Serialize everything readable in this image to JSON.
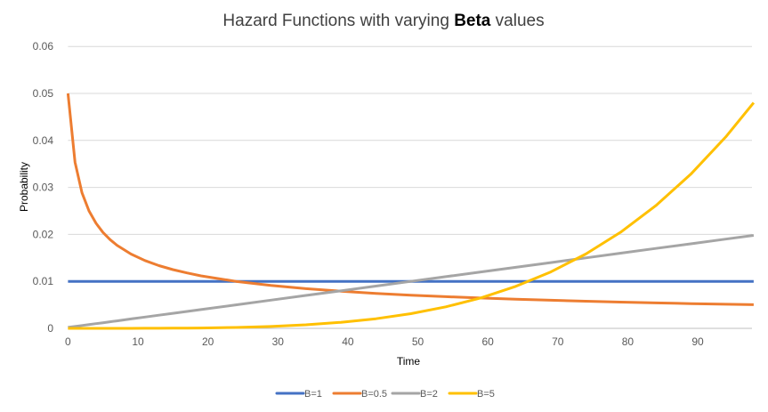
{
  "chart_data": {
    "type": "line",
    "title": "Hazard Functions with varying",
    "title_bold": "Beta",
    "title_suffix": "values",
    "xlabel": "Time",
    "ylabel": "Probability",
    "xlim": [
      0,
      98
    ],
    "ylim": [
      0,
      0.06
    ],
    "x_ticks": [
      "0",
      "10",
      "20",
      "30",
      "40",
      "50",
      "60",
      "70",
      "80",
      "90"
    ],
    "y_ticks": [
      "0",
      "0.01",
      "0.02",
      "0.03",
      "0.04",
      "0.05",
      "0.06"
    ],
    "grid": true,
    "legend_position": "bottom",
    "x": [
      0,
      1,
      2,
      3,
      4,
      5,
      6,
      7,
      9,
      11,
      13,
      15,
      17,
      19,
      24,
      29,
      34,
      39,
      44,
      49,
      54,
      59,
      64,
      69,
      74,
      79,
      84,
      89,
      94,
      98
    ],
    "series": [
      {
        "name": "B=1",
        "color": "#4472C4",
        "values": [
          0.01,
          0.01,
          0.01,
          0.01,
          0.01,
          0.01,
          0.01,
          0.01,
          0.01,
          0.01,
          0.01,
          0.01,
          0.01,
          0.01,
          0.01,
          0.01,
          0.01,
          0.01,
          0.01,
          0.01,
          0.01,
          0.01,
          0.01,
          0.01,
          0.01,
          0.01,
          0.01,
          0.01,
          0.01,
          0.01
        ]
      },
      {
        "name": "B=0.5",
        "color": "#ED7D31",
        "values": [
          0.05,
          0.03536,
          0.02887,
          0.025,
          0.02236,
          0.02041,
          0.0189,
          0.01768,
          0.01581,
          0.01443,
          0.01336,
          0.0125,
          0.01179,
          0.01118,
          0.01,
          0.00913,
          0.00845,
          0.00791,
          0.00745,
          0.00707,
          0.00674,
          0.00645,
          0.0062,
          0.00598,
          0.00577,
          0.00559,
          0.00542,
          0.00527,
          0.00513,
          0.00503
        ]
      },
      {
        "name": "B=2",
        "color": "#A5A5A5",
        "values": [
          0.0002,
          0.0004,
          0.0006,
          0.0008,
          0.001,
          0.0012,
          0.0014,
          0.0016,
          0.002,
          0.0024,
          0.0028,
          0.0032,
          0.0036,
          0.004,
          0.005,
          0.006,
          0.007,
          0.008,
          0.009,
          0.01,
          0.011,
          0.012,
          0.013,
          0.014,
          0.015,
          0.016,
          0.017,
          0.018,
          0.019,
          0.0198
        ]
      },
      {
        "name": "B=5",
        "color": "#FFC000",
        "values": [
          0,
          0,
          0,
          0,
          0,
          0,
          0,
          0,
          5e-06,
          1.04e-05,
          1.92e-05,
          3.28e-05,
          5.25e-05,
          8e-05,
          0.000195,
          0.000405,
          0.00075,
          0.00128,
          0.00205,
          0.003125,
          0.00458,
          0.00648,
          0.00893,
          0.012,
          0.01582,
          0.02048,
          0.0261,
          0.0328,
          0.04073,
          0.04803
        ]
      }
    ]
  }
}
